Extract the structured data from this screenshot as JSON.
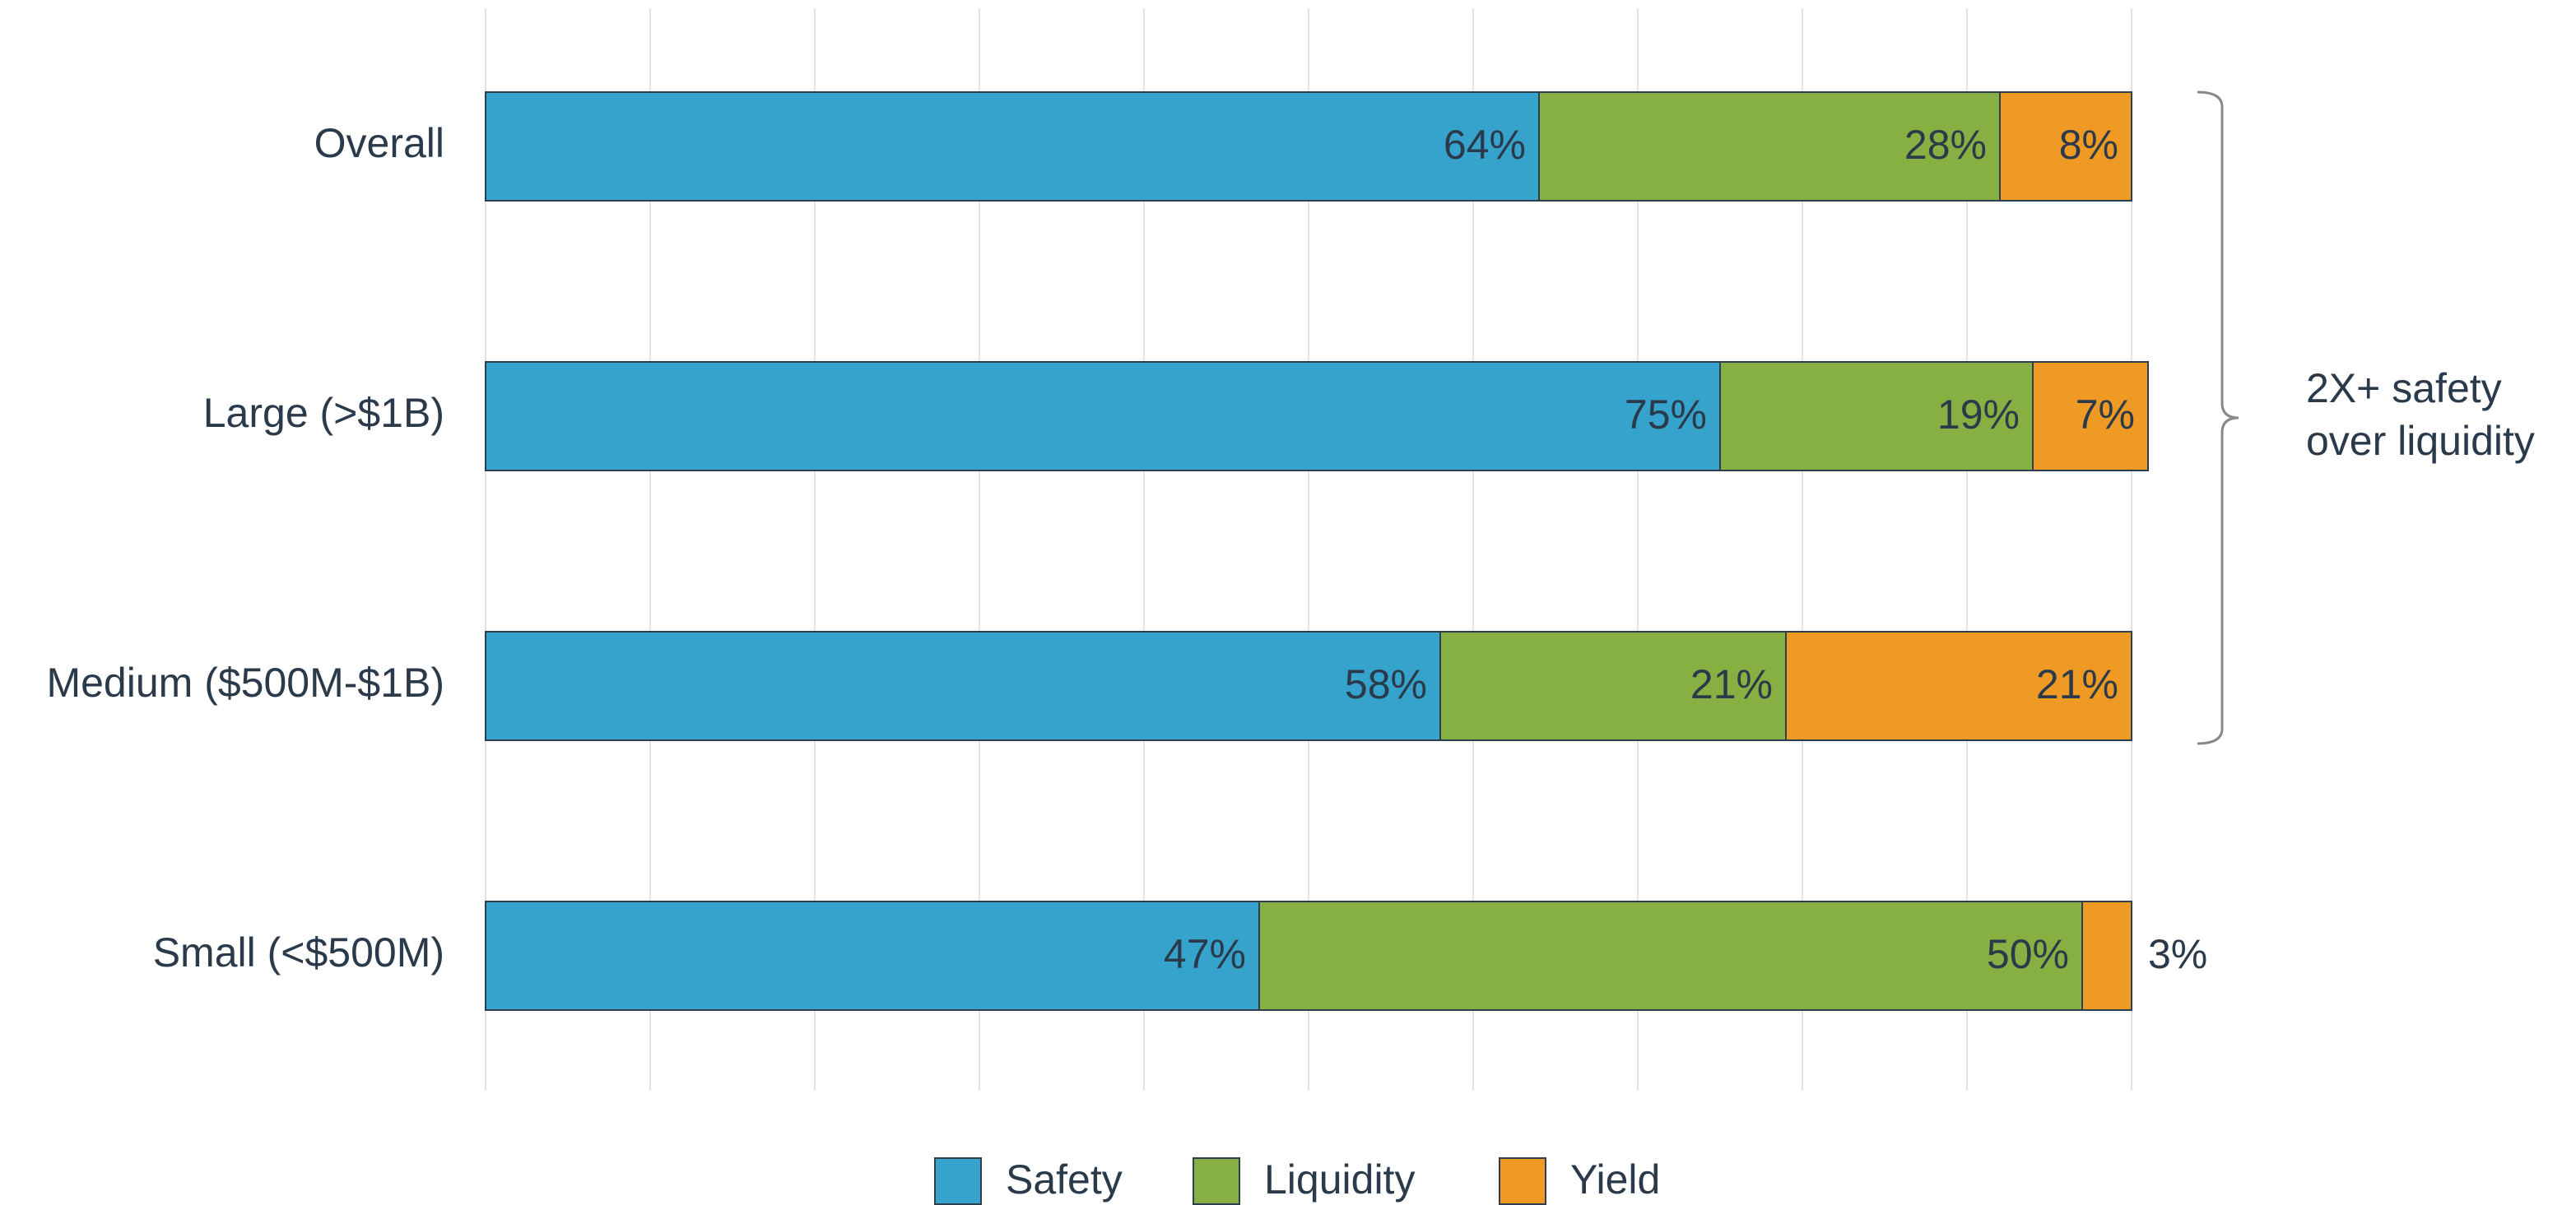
{
  "chart_data": {
    "type": "stacked-barh",
    "categories": [
      "Overall",
      "Large (>$1B)",
      "Medium ($500M-$1B)",
      "Small (<$500M)"
    ],
    "series": [
      {
        "name": "Safety",
        "color": "#36a3cc",
        "values": [
          64,
          75,
          58,
          47
        ],
        "value_labels": [
          "64%",
          "75%",
          "58%",
          "47%"
        ]
      },
      {
        "name": "Liquidity",
        "color": "#86b041",
        "values": [
          28,
          19,
          21,
          50
        ],
        "value_labels": [
          "28%",
          "19%",
          "21%",
          "50%"
        ]
      },
      {
        "name": "Yield",
        "color": "#ee9a25",
        "values": [
          8,
          7,
          21,
          3
        ],
        "value_labels": [
          "8%",
          "7%",
          "21%",
          "3%"
        ]
      }
    ],
    "xlim": [
      0,
      100
    ],
    "xticks": [
      0,
      10,
      20,
      30,
      40,
      50,
      60,
      70,
      80,
      90,
      100
    ],
    "grid": true,
    "annotation": [
      "2X+ safety",
      "over liquidity"
    ],
    "legend": "bottom"
  }
}
